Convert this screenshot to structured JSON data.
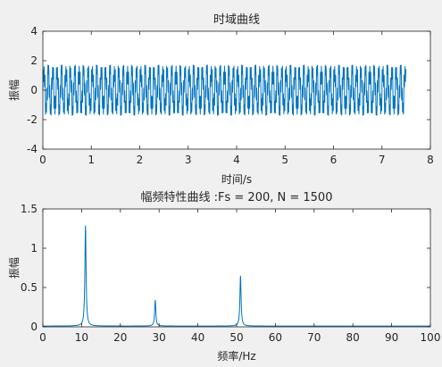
{
  "figure": {
    "background": "#f0f0f0",
    "axes_background": "#ffffff",
    "line_color": "#0072bd"
  },
  "chart_data": [
    {
      "type": "line",
      "title": "时域曲线",
      "xlabel": "时间/s",
      "ylabel": "振幅",
      "xlim": [
        0,
        8
      ],
      "ylim": [
        -4,
        4
      ],
      "xticks": [
        "0",
        "1",
        "2",
        "3",
        "4",
        "5",
        "6",
        "7",
        "8"
      ],
      "yticks": [
        "-4",
        "-2",
        "0",
        "2",
        "4"
      ],
      "grid": false,
      "signal": {
        "t_start": 0,
        "t_end": 7.495,
        "sample_rate": 200,
        "components": [
          {
            "freq": 11,
            "amp": 1.3
          },
          {
            "freq": 29,
            "amp": 0.35
          },
          {
            "freq": 51,
            "amp": 0.7
          }
        ]
      }
    },
    {
      "type": "line",
      "title": "幅频特性曲线 :Fs = 200, N = 1500",
      "xlabel": "频率/Hz",
      "ylabel": "振幅",
      "xlim": [
        0,
        100
      ],
      "ylim": [
        0,
        1.5
      ],
      "xticks": [
        "0",
        "10",
        "20",
        "30",
        "40",
        "50",
        "60",
        "70",
        "80",
        "90",
        "100"
      ],
      "yticks": [
        "0",
        "0.5",
        "1",
        "1.5"
      ],
      "grid": false,
      "baseline": 0.01,
      "peaks": [
        {
          "freq": 11,
          "amp": 1.28
        },
        {
          "freq": 29,
          "amp": 0.33
        },
        {
          "freq": 51,
          "amp": 0.64
        }
      ]
    }
  ]
}
